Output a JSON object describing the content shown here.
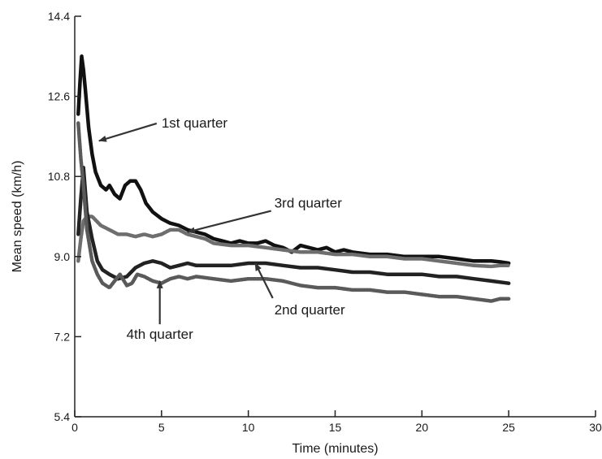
{
  "chart_data": {
    "type": "line",
    "title": "",
    "xlabel": "Time (minutes)",
    "ylabel": "Mean speed (km/h)",
    "xlim": [
      0,
      30
    ],
    "ylim": [
      5.4,
      14.4
    ],
    "x_ticks": [
      0,
      5,
      10,
      15,
      20,
      25,
      30
    ],
    "y_ticks": [
      5.4,
      7.2,
      9.0,
      10.8,
      12.6,
      14.4
    ],
    "x_tick_labels": [
      "0",
      "5",
      "10",
      "15",
      "20",
      "25",
      "30"
    ],
    "y_tick_labels": [
      "5.4",
      "7.2",
      "9.0",
      "10.8",
      "12.6",
      "14.4"
    ],
    "grid": false,
    "legend": "none",
    "series": [
      {
        "name": "1st quarter",
        "color": "#111111",
        "x": [
          0.2,
          0.3,
          0.4,
          0.5,
          0.6,
          0.8,
          1.0,
          1.2,
          1.5,
          1.8,
          2.0,
          2.3,
          2.6,
          2.9,
          3.2,
          3.5,
          3.8,
          4.1,
          4.5,
          5.0,
          5.5,
          6.0,
          6.5,
          7.0,
          7.5,
          8.0,
          8.5,
          9.0,
          9.5,
          10.0,
          10.5,
          11.0,
          11.5,
          12.0,
          12.5,
          13.0,
          13.5,
          14.0,
          14.5,
          15.0,
          15.5,
          16.0,
          17.0,
          18.0,
          19.0,
          20.0,
          21.0,
          22.0,
          23.0,
          24.0,
          24.5,
          25.0
        ],
        "y": [
          12.2,
          12.9,
          13.5,
          13.2,
          12.8,
          11.9,
          11.3,
          10.9,
          10.6,
          10.5,
          10.6,
          10.4,
          10.3,
          10.6,
          10.7,
          10.7,
          10.5,
          10.2,
          10.0,
          9.85,
          9.75,
          9.7,
          9.6,
          9.55,
          9.5,
          9.4,
          9.35,
          9.3,
          9.35,
          9.3,
          9.3,
          9.35,
          9.25,
          9.2,
          9.1,
          9.25,
          9.2,
          9.15,
          9.2,
          9.1,
          9.15,
          9.1,
          9.05,
          9.05,
          9.0,
          9.0,
          9.0,
          8.95,
          8.9,
          8.9,
          8.88,
          8.85
        ]
      },
      {
        "name": "3rd quarter",
        "color": "#6e6e6e",
        "x": [
          0.2,
          0.35,
          0.5,
          0.7,
          1.0,
          1.5,
          2.0,
          2.5,
          3.0,
          3.5,
          4.0,
          4.5,
          5.0,
          5.5,
          6.0,
          6.5,
          7.0,
          7.5,
          8.0,
          9.0,
          10.0,
          11.0,
          12.0,
          13.0,
          14.0,
          15.0,
          16.0,
          17.0,
          18.0,
          19.0,
          20.0,
          21.0,
          22.0,
          23.0,
          24.0,
          24.5,
          25.0
        ],
        "y": [
          8.9,
          9.4,
          9.8,
          9.9,
          9.9,
          9.7,
          9.6,
          9.5,
          9.5,
          9.45,
          9.5,
          9.45,
          9.5,
          9.6,
          9.6,
          9.5,
          9.45,
          9.4,
          9.3,
          9.25,
          9.25,
          9.2,
          9.15,
          9.1,
          9.1,
          9.05,
          9.05,
          9.0,
          9.0,
          8.95,
          8.95,
          8.9,
          8.85,
          8.8,
          8.78,
          8.8,
          8.8
        ]
      },
      {
        "name": "2nd quarter",
        "color": "#222222",
        "x": [
          0.2,
          0.35,
          0.5,
          0.7,
          1.0,
          1.3,
          1.6,
          2.0,
          2.5,
          3.0,
          3.5,
          4.0,
          4.5,
          5.0,
          5.5,
          6.0,
          6.5,
          7.0,
          8.0,
          9.0,
          10.0,
          11.0,
          12.0,
          13.0,
          14.0,
          15.0,
          16.0,
          17.0,
          18.0,
          19.0,
          20.0,
          21.0,
          22.0,
          23.0,
          24.0,
          25.0
        ],
        "y": [
          9.5,
          10.3,
          11.0,
          10.0,
          9.4,
          8.9,
          8.7,
          8.6,
          8.5,
          8.55,
          8.75,
          8.85,
          8.9,
          8.85,
          8.75,
          8.8,
          8.85,
          8.8,
          8.8,
          8.8,
          8.85,
          8.85,
          8.8,
          8.75,
          8.75,
          8.7,
          8.65,
          8.65,
          8.6,
          8.6,
          8.6,
          8.55,
          8.55,
          8.5,
          8.45,
          8.4
        ]
      },
      {
        "name": "4th quarter",
        "color": "#5a5a5a",
        "x": [
          0.2,
          0.35,
          0.5,
          0.7,
          1.0,
          1.3,
          1.6,
          2.0,
          2.3,
          2.6,
          3.0,
          3.3,
          3.6,
          4.0,
          4.5,
          5.0,
          5.5,
          6.0,
          6.5,
          7.0,
          8.0,
          9.0,
          10.0,
          11.0,
          12.0,
          13.0,
          14.0,
          15.0,
          16.0,
          17.0,
          18.0,
          19.0,
          20.0,
          21.0,
          22.0,
          23.0,
          24.0,
          24.5,
          25.0
        ],
        "y": [
          12.0,
          11.2,
          10.6,
          9.6,
          8.9,
          8.6,
          8.4,
          8.3,
          8.45,
          8.6,
          8.35,
          8.4,
          8.6,
          8.55,
          8.45,
          8.4,
          8.5,
          8.55,
          8.5,
          8.55,
          8.5,
          8.45,
          8.5,
          8.5,
          8.45,
          8.35,
          8.3,
          8.3,
          8.25,
          8.25,
          8.2,
          8.2,
          8.15,
          8.1,
          8.1,
          8.05,
          8.0,
          8.05,
          8.05
        ]
      }
    ],
    "annotations": [
      {
        "text": "1st quarter",
        "target": [
          1.4,
          11.6
        ],
        "label": [
          5.0,
          11.9
        ]
      },
      {
        "text": "3rd quarter",
        "target": [
          6.5,
          9.55
        ],
        "label": [
          11.5,
          10.1
        ]
      },
      {
        "text": "2nd quarter",
        "target": [
          10.4,
          8.85
        ],
        "label": [
          11.5,
          7.7
        ]
      },
      {
        "text": "4th quarter",
        "target": [
          4.9,
          8.45
        ],
        "label": [
          4.9,
          7.15
        ]
      }
    ]
  }
}
